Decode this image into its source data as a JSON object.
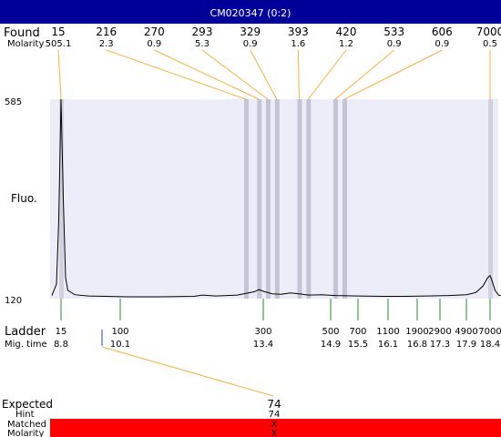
{
  "title": "CM020347 (0:2)",
  "labels": {
    "found": "Found",
    "molarity": "Molarity",
    "fluo": "Fluo.",
    "ladder": "Ladder",
    "mig_time": "Mig. time",
    "expected": "Expected",
    "hint": "Hint",
    "matched": "Matched",
    "molarity_bottom": "Molarity"
  },
  "colors": {
    "title_bar": "#000099",
    "plot_bg": "#ededfa",
    "band": "#c4c4d4",
    "found_line": "#f4b040",
    "ladder_line": "#2a8a2a",
    "hint_line": "#1f3fb8",
    "matched_bar": "#ff0000",
    "trace": "#000000"
  },
  "chart_data": {
    "type": "line",
    "ylim_labels": [
      "585",
      "120"
    ],
    "found": [
      {
        "size": "15",
        "molarity": "505.1",
        "time": 8.8
      },
      {
        "size": "216",
        "molarity": "2.3",
        "time": 13.0
      },
      {
        "size": "270",
        "molarity": "0.9",
        "time": 13.3
      },
      {
        "size": "293",
        "molarity": "5.3",
        "time": 13.5
      },
      {
        "size": "329",
        "molarity": "0.9",
        "time": 13.7
      },
      {
        "size": "393",
        "molarity": "1.6",
        "time": 14.2
      },
      {
        "size": "420",
        "molarity": "1.2",
        "time": 14.4
      },
      {
        "size": "533",
        "molarity": "0.9",
        "time": 15.0
      },
      {
        "size": "606",
        "molarity": "0.9",
        "time": 15.2
      },
      {
        "size": "7000",
        "molarity": "0.5",
        "time": 18.4
      }
    ],
    "ladder": [
      {
        "size": "15",
        "time": "8.8"
      },
      {
        "size": "100",
        "time": "10.1"
      },
      {
        "size": "300",
        "time": "13.4"
      },
      {
        "size": "500",
        "time": "14.9"
      },
      {
        "size": "700",
        "time": "15.5"
      },
      {
        "size": "1100",
        "time": "16.1"
      },
      {
        "size": "1900",
        "time": "16.8"
      },
      {
        "size": "2900",
        "time": "17.3"
      },
      {
        "size": "4900",
        "time": "17.9"
      },
      {
        "size": "7000",
        "time": "18.4"
      }
    ],
    "expected": {
      "expected": "74",
      "hint": "74",
      "matched": "X",
      "molarity": "X"
    },
    "trace": [
      [
        8.6,
        123
      ],
      [
        8.7,
        150
      ],
      [
        8.75,
        300
      ],
      [
        8.8,
        585
      ],
      [
        8.85,
        350
      ],
      [
        8.9,
        165
      ],
      [
        8.95,
        135
      ],
      [
        9.1,
        125
      ],
      [
        9.4,
        122
      ],
      [
        9.8,
        121
      ],
      [
        10.3,
        120
      ],
      [
        11,
        120
      ],
      [
        11.8,
        121
      ],
      [
        12.0,
        124
      ],
      [
        12.3,
        122
      ],
      [
        12.8,
        124
      ],
      [
        13.0,
        128
      ],
      [
        13.2,
        132
      ],
      [
        13.3,
        137
      ],
      [
        13.4,
        133
      ],
      [
        13.6,
        127
      ],
      [
        13.8,
        126
      ],
      [
        14.0,
        129
      ],
      [
        14.2,
        127
      ],
      [
        14.4,
        124
      ],
      [
        14.7,
        125
      ],
      [
        15.0,
        123
      ],
      [
        15.5,
        122
      ],
      [
        16.0,
        121
      ],
      [
        16.5,
        121
      ],
      [
        17.0,
        122
      ],
      [
        17.5,
        123
      ],
      [
        17.9,
        125
      ],
      [
        18.1,
        130
      ],
      [
        18.25,
        145
      ],
      [
        18.35,
        165
      ],
      [
        18.4,
        170
      ],
      [
        18.45,
        160
      ],
      [
        18.55,
        135
      ],
      [
        18.65,
        124
      ],
      [
        18.75,
        122
      ]
    ]
  }
}
